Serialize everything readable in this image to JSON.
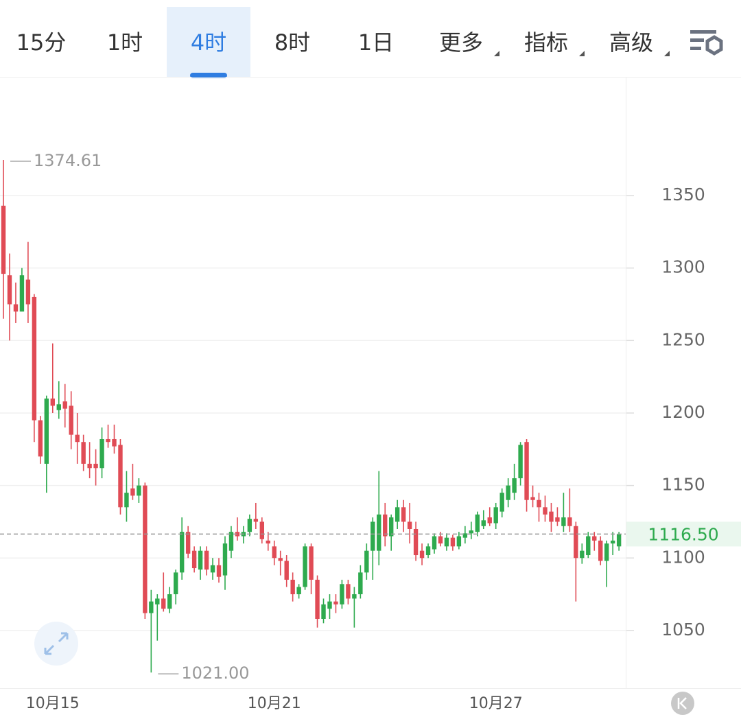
{
  "ui": {
    "tabs": [
      "15分",
      "1时",
      "4时",
      "8时",
      "1日",
      "更多",
      "指标",
      "高级"
    ],
    "active_tab": 2
  },
  "chart_data": {
    "type": "candlestick",
    "open": [
      1343,
      1295,
      1275,
      1270,
      1292,
      1280,
      1195,
      1165,
      1210,
      1202,
      1208,
      1205,
      1185,
      1180,
      1165,
      1165,
      1162,
      1182,
      1182,
      1178,
      1135,
      1148,
      1143,
      1150,
      1062,
      1068,
      1072,
      1065,
      1075,
      1090,
      1118,
      1105,
      1092,
      1105,
      1090,
      1095,
      1088,
      1105,
      1118,
      1115,
      1118,
      1127,
      1125,
      1112,
      1108,
      1100,
      1098,
      1085,
      1075,
      1080,
      1108,
      1085,
      1058,
      1065,
      1070,
      1068,
      1082,
      1072,
      1075,
      1090,
      1105,
      1105,
      1130,
      1115,
      1125,
      1135,
      1125,
      1120,
      1105,
      1102,
      1106,
      1115,
      1108,
      1114,
      1108,
      1114,
      1117,
      1118,
      1122,
      1128,
      1124,
      1132,
      1140,
      1145,
      1155,
      1180,
      1142,
      1140,
      1135,
      1132,
      1128,
      1122,
      1128,
      1122,
      1100,
      1102,
      1115,
      1112,
      1098,
      1110,
      1108
    ],
    "high": [
      1374.61,
      1310,
      1290,
      1300,
      1318,
      1282,
      1198,
      1212,
      1248,
      1222,
      1220,
      1215,
      1200,
      1185,
      1180,
      1175,
      1190,
      1192,
      1192,
      1182,
      1160,
      1165,
      1155,
      1152,
      1078,
      1075,
      1090,
      1080,
      1092,
      1128,
      1122,
      1108,
      1108,
      1108,
      1100,
      1100,
      1115,
      1122,
      1128,
      1122,
      1130,
      1138,
      1128,
      1118,
      1112,
      1105,
      1102,
      1090,
      1082,
      1110,
      1110,
      1088,
      1072,
      1075,
      1075,
      1085,
      1085,
      1080,
      1095,
      1110,
      1128,
      1160,
      1138,
      1130,
      1140,
      1140,
      1138,
      1125,
      1110,
      1110,
      1117,
      1118,
      1117,
      1116,
      1118,
      1122,
      1125,
      1132,
      1133,
      1135,
      1138,
      1148,
      1155,
      1165,
      1180,
      1182,
      1150,
      1145,
      1143,
      1138,
      1135,
      1145,
      1148,
      1125,
      1110,
      1118,
      1118,
      1115,
      1112,
      1118,
      1118
    ],
    "low": [
      1265,
      1250,
      1262,
      1270,
      1262,
      1180,
      1165,
      1145,
      1200,
      1196,
      1190,
      1175,
      1165,
      1160,
      1155,
      1150,
      1155,
      1176,
      1172,
      1130,
      1125,
      1140,
      1138,
      1058,
      1021,
      1043,
      1063,
      1062,
      1068,
      1085,
      1100,
      1090,
      1085,
      1088,
      1085,
      1083,
      1078,
      1100,
      1112,
      1110,
      1115,
      1120,
      1110,
      1105,
      1095,
      1088,
      1080,
      1070,
      1072,
      1078,
      1075,
      1052,
      1055,
      1058,
      1062,
      1065,
      1068,
      1052,
      1072,
      1085,
      1085,
      1095,
      1108,
      1105,
      1120,
      1118,
      1110,
      1098,
      1095,
      1100,
      1103,
      1108,
      1105,
      1105,
      1106,
      1110,
      1113,
      1115,
      1120,
      1122,
      1120,
      1128,
      1135,
      1140,
      1150,
      1132,
      1135,
      1125,
      1125,
      1118,
      1122,
      1118,
      1118,
      1070,
      1096,
      1100,
      1105,
      1095,
      1080,
      1102,
      1105
    ],
    "close": [
      1296,
      1275,
      1270,
      1295,
      1275,
      1195,
      1170,
      1210,
      1205,
      1206,
      1203,
      1185,
      1180,
      1165,
      1162,
      1162,
      1182,
      1180,
      1177,
      1135,
      1145,
      1143,
      1150,
      1062,
      1070,
      1072,
      1065,
      1075,
      1090,
      1118,
      1103,
      1093,
      1105,
      1092,
      1095,
      1087,
      1110,
      1118,
      1115,
      1118,
      1127,
      1125,
      1113,
      1110,
      1100,
      1098,
      1085,
      1075,
      1080,
      1108,
      1085,
      1058,
      1068,
      1070,
      1068,
      1082,
      1072,
      1075,
      1090,
      1105,
      1125,
      1130,
      1115,
      1128,
      1135,
      1125,
      1120,
      1102,
      1100,
      1108,
      1115,
      1110,
      1114,
      1108,
      1115,
      1117,
      1119,
      1130,
      1126,
      1124,
      1135,
      1145,
      1150,
      1155,
      1178,
      1140,
      1140,
      1135,
      1130,
      1125,
      1125,
      1128,
      1122,
      1100,
      1105,
      1115,
      1112,
      1098,
      1110,
      1112,
      1116.5
    ],
    "up_color": "#2eaa4e",
    "down_color": "#e04b55",
    "xlim": [
      -0.56,
      101.1
    ],
    "xticks": [
      {
        "value": 8,
        "label": "10月15"
      },
      {
        "value": 44,
        "label": "10月21"
      },
      {
        "value": 80,
        "label": "10月27"
      }
    ],
    "ylim": [
      1010.2,
      1431.4
    ],
    "yticks": [
      1050,
      1100,
      1150,
      1200,
      1250,
      1300,
      1350
    ],
    "grid": true,
    "annotations": [
      {
        "x": 0,
        "value": 1374.61,
        "label": "1374.61"
      },
      {
        "x": 24,
        "value": 1021,
        "label": "1021.00"
      }
    ],
    "last_price": {
      "value": 1116.5,
      "label": "1116.50"
    }
  }
}
